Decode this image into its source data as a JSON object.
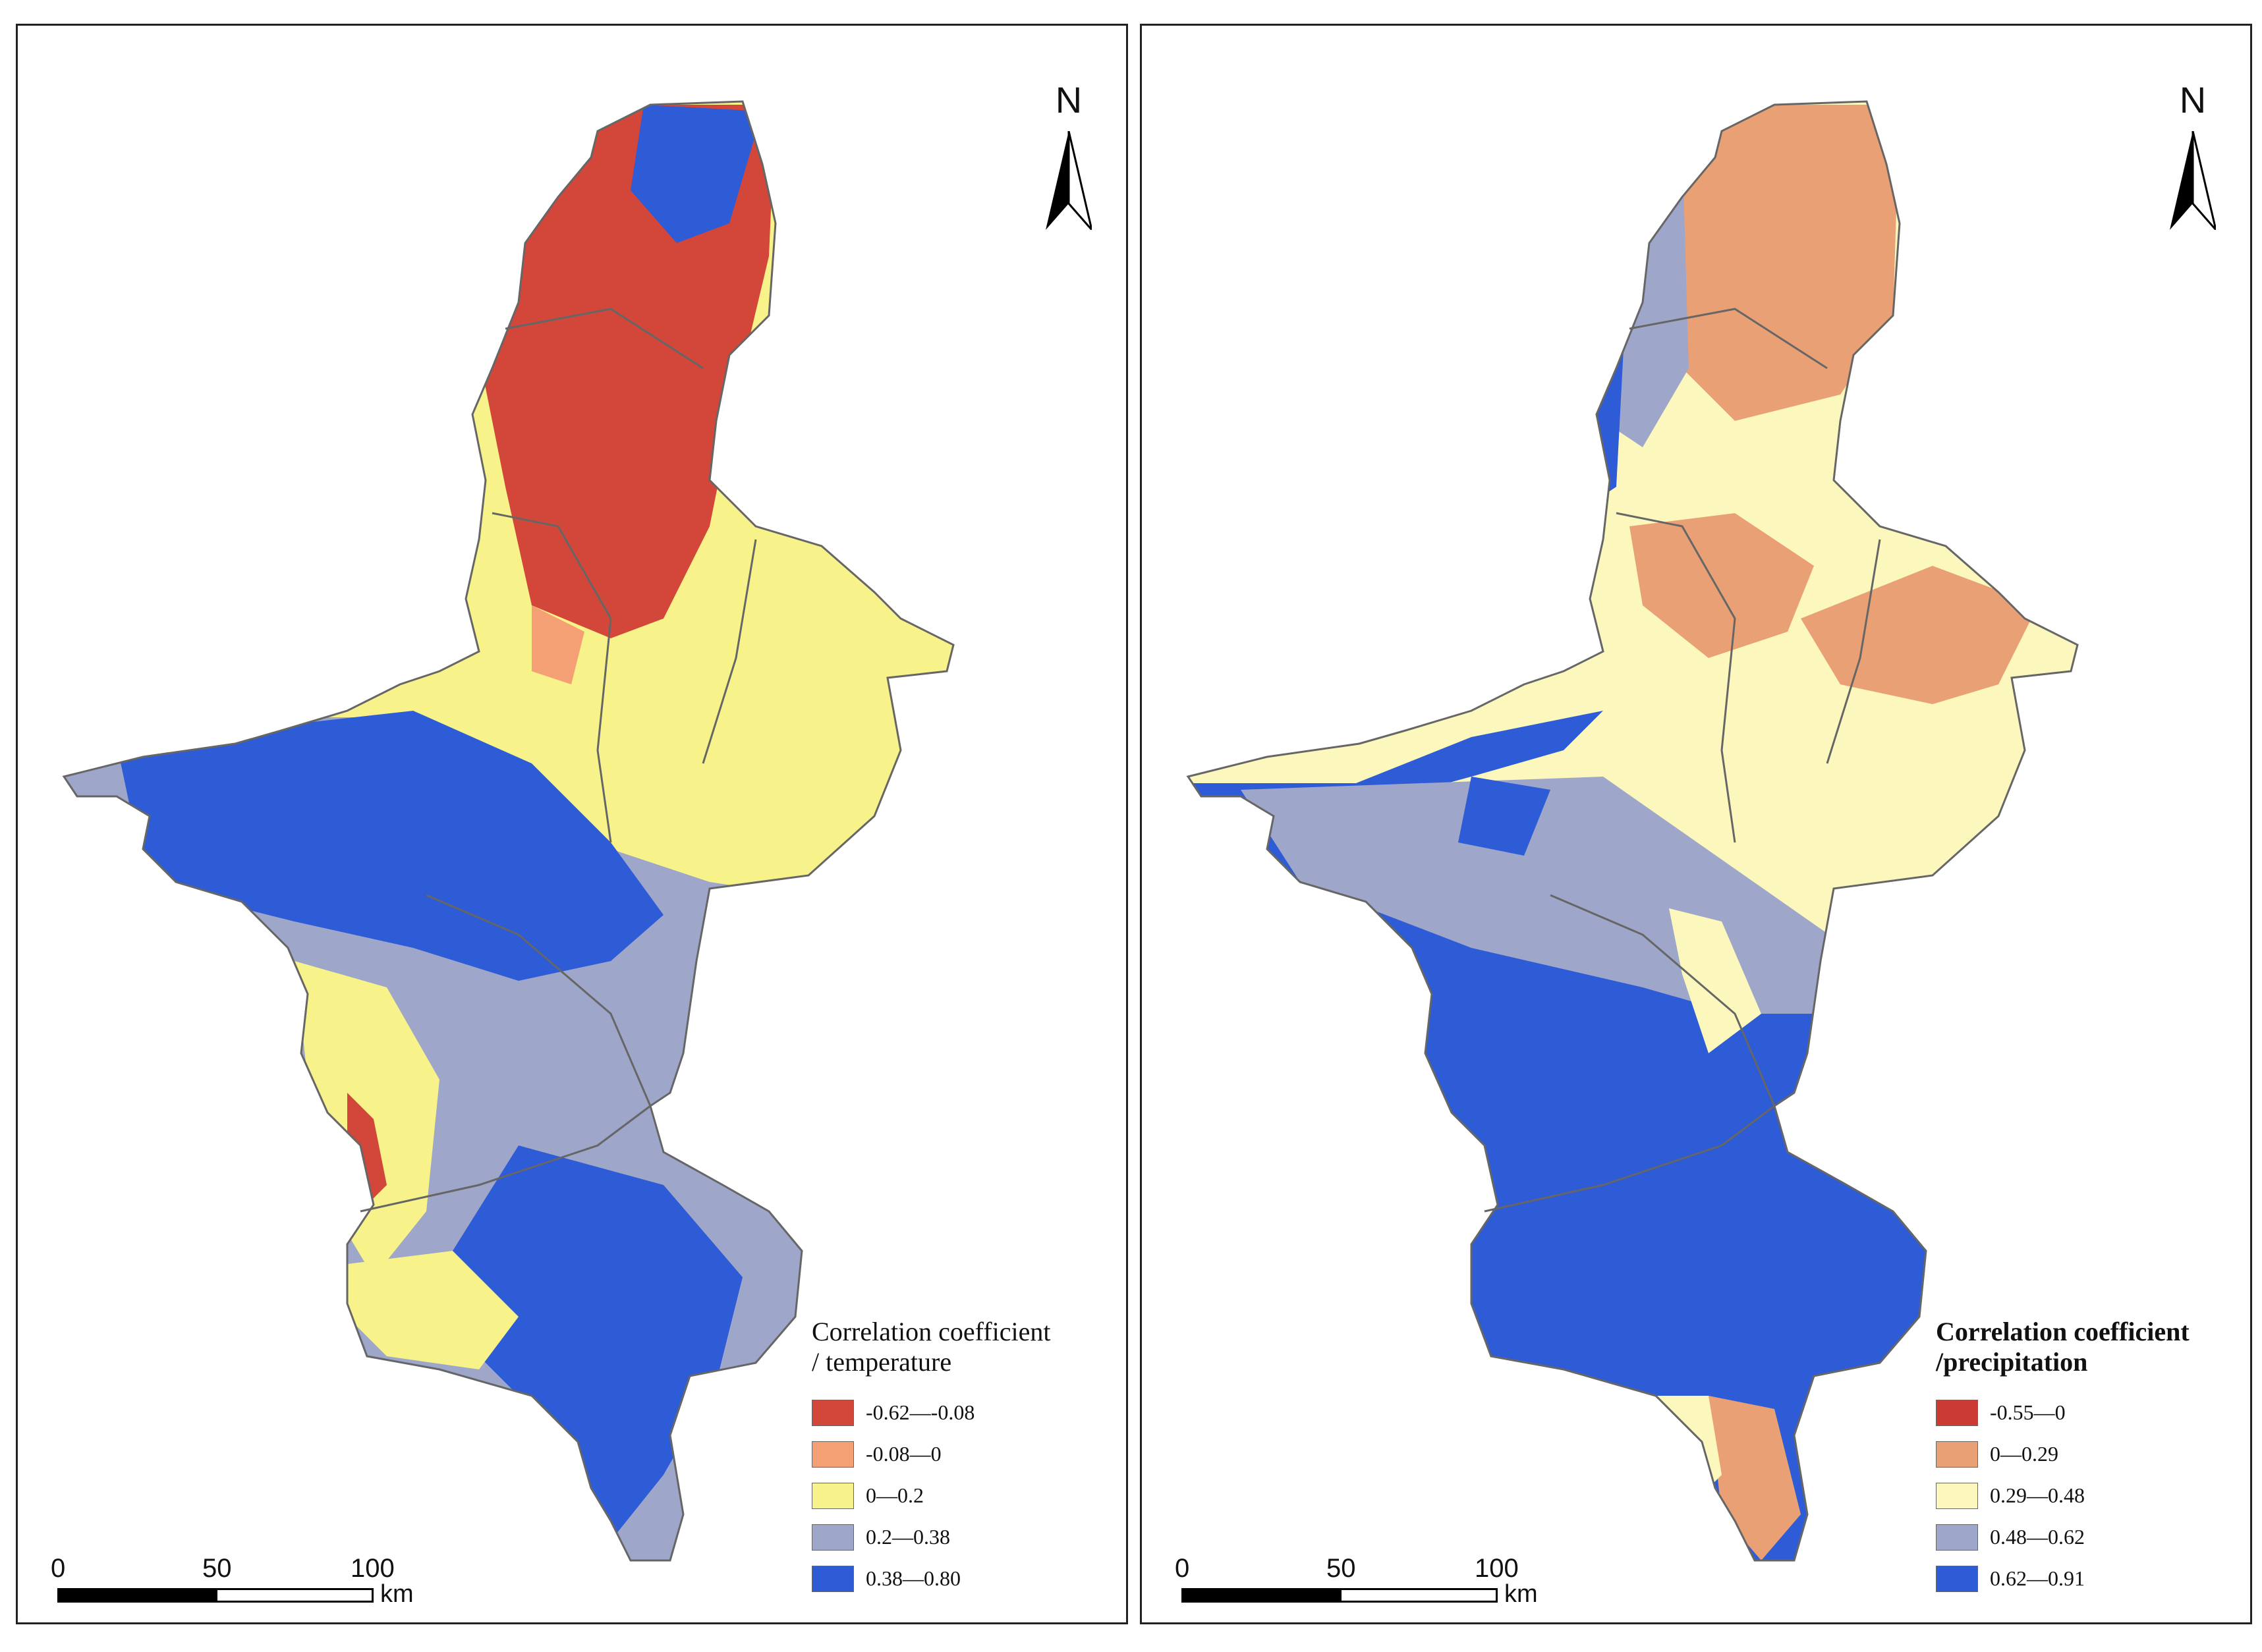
{
  "maps": [
    {
      "north_label": "N",
      "legend": {
        "title_line1": "Correlation coefficient",
        "title_line2": "/ temperature",
        "classes": [
          {
            "label": "-0.62—-0.08",
            "color": "#d2473a"
          },
          {
            "label": "-0.08—0",
            "color": "#f4a074"
          },
          {
            "label": "0—0.2",
            "color": "#f7f38a"
          },
          {
            "label": "0.2—0.38",
            "color": "#9ea6c9"
          },
          {
            "label": "0.38—0.80",
            "color": "#2e5bd6"
          }
        ]
      },
      "scale": {
        "ticks": [
          "0",
          "50",
          "100"
        ],
        "unit": "km"
      }
    },
    {
      "north_label": "N",
      "legend": {
        "title_line1": "Correlation coefficient",
        "title_line2": "/precipitation",
        "classes": [
          {
            "label": "-0.55—0",
            "color": "#cc3b33"
          },
          {
            "label": "0—0.29",
            "color": "#e9a075"
          },
          {
            "label": "0.29—0.48",
            "color": "#fbf7bd"
          },
          {
            "label": "0.48—0.62",
            "color": "#9ea6c9"
          },
          {
            "label": "0.62—0.91",
            "color": "#2e5bd6"
          }
        ]
      },
      "scale": {
        "ticks": [
          "0",
          "50",
          "100"
        ],
        "unit": "km"
      }
    }
  ]
}
